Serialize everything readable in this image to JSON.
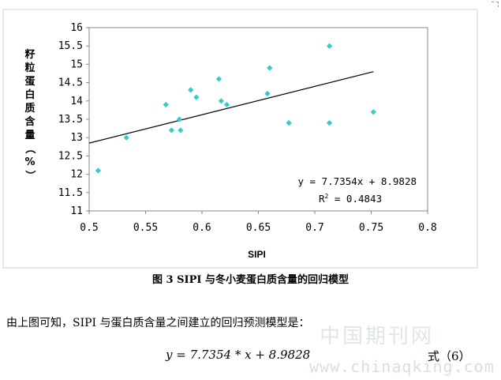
{
  "chart_data": {
    "type": "scatter",
    "title": "",
    "xlabel": "SIPI",
    "ylabel": "籽粒蛋白质含量（%）",
    "xlim": [
      0.5,
      0.8
    ],
    "ylim": [
      11,
      16
    ],
    "x_ticks": [
      "0.5",
      "0.55",
      "0.6",
      "0.65",
      "0.7",
      "0.75",
      "0.8"
    ],
    "y_ticks": [
      "11",
      "11.5",
      "12",
      "12.5",
      "13",
      "13.5",
      "14",
      "14.5",
      "15",
      "15.5",
      "16"
    ],
    "grid": false,
    "marker_color": "#33cccc",
    "points": [
      {
        "x": 0.508,
        "y": 12.1
      },
      {
        "x": 0.533,
        "y": 13.0
      },
      {
        "x": 0.568,
        "y": 13.9
      },
      {
        "x": 0.573,
        "y": 13.2
      },
      {
        "x": 0.58,
        "y": 13.5
      },
      {
        "x": 0.581,
        "y": 13.2
      },
      {
        "x": 0.59,
        "y": 14.3
      },
      {
        "x": 0.595,
        "y": 14.1
      },
      {
        "x": 0.615,
        "y": 14.6
      },
      {
        "x": 0.617,
        "y": 14.0
      },
      {
        "x": 0.622,
        "y": 13.9
      },
      {
        "x": 0.658,
        "y": 14.2
      },
      {
        "x": 0.66,
        "y": 14.9
      },
      {
        "x": 0.677,
        "y": 13.4
      },
      {
        "x": 0.713,
        "y": 15.5
      },
      {
        "x": 0.713,
        "y": 13.4
      },
      {
        "x": 0.752,
        "y": 13.7
      }
    ],
    "trendline": {
      "slope": 7.7354,
      "intercept": 8.9828,
      "x_range": [
        0.5,
        0.752
      ]
    },
    "annotations": {
      "equation": "y = 7.7354x + 8.9828",
      "r2_prefix": "R",
      "r2_sup": "2",
      "r2_rest": " = 0.4843"
    }
  },
  "caption": "图 3    SIPI 与冬小麦蛋白质含量的回归模型",
  "paragraph": "由上图可知，SIPI 与蛋白质含量之间建立的回归预测模型是：",
  "formula": "y = 7.7354 * x + 8.9828",
  "formula_number": "式（6）",
  "watermark_cn": "中国期刊网",
  "watermark_url": "www.chinaqking.com"
}
